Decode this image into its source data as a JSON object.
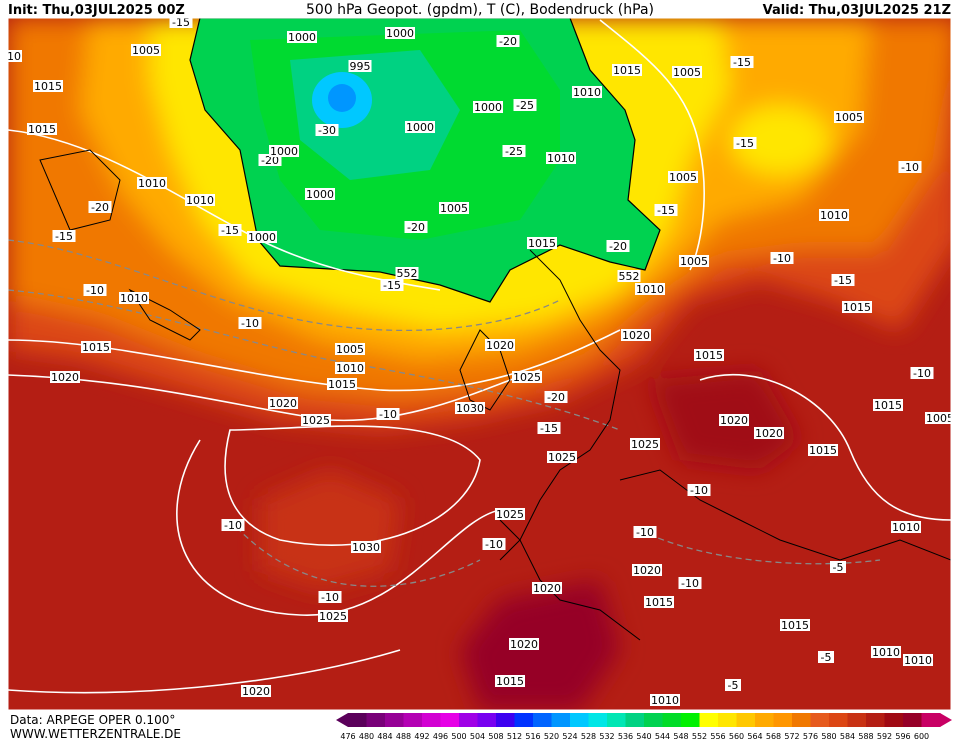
{
  "header": {
    "init": "Init: Thu,03JUL2025 00Z",
    "title": "500 hPa Geopot. (gpdm), T (C), Bodendruck (hPa)",
    "valid": "Valid: Thu,03JUL2025 21Z"
  },
  "footer": {
    "source": "Data: ARPEGE OPER 0.100°",
    "website": "WWW.WETTERZENTRALE.DE"
  },
  "colorbar": {
    "labels": [
      "476",
      "480",
      "484",
      "488",
      "492",
      "496",
      "500",
      "504",
      "508",
      "512",
      "516",
      "520",
      "524",
      "528",
      "532",
      "536",
      "540",
      "544",
      "548",
      "552",
      "556",
      "560",
      "564",
      "568",
      "572",
      "576",
      "580",
      "584",
      "588",
      "592",
      "596",
      "600"
    ],
    "colors": [
      "#5a005a",
      "#780078",
      "#960096",
      "#b400b4",
      "#d200d2",
      "#e600e6",
      "#a000e6",
      "#7800f0",
      "#3c00f0",
      "#0032ff",
      "#0064ff",
      "#0096ff",
      "#00c8ff",
      "#00e6e6",
      "#00e6b4",
      "#00d282",
      "#00d250",
      "#00dc28",
      "#00f000",
      "#ffff00",
      "#ffe600",
      "#ffc800",
      "#ffaa00",
      "#ff9600",
      "#f07800",
      "#e65a1e",
      "#dc4614",
      "#c83214",
      "#b41e14",
      "#a00a14",
      "#960028",
      "#c80064"
    ]
  },
  "map_labels": [
    "1005",
    "1015",
    "1015",
    "1010",
    "1010",
    "-20",
    "-15",
    "-10",
    "1010",
    "1015",
    "1020",
    "-10",
    "1000",
    "-15",
    "1005",
    "1010",
    "1015",
    "1020",
    "1025",
    "-10",
    "1030",
    "1020",
    "1025",
    "-20",
    "-15",
    "1025",
    "-10",
    "1030",
    "-10",
    "1025",
    "1020",
    "1025",
    "-10",
    "1020",
    "1020",
    "1015",
    "1010",
    "1020",
    "-10",
    "-10",
    "1015",
    "1015",
    "-5",
    "-5",
    "1010",
    "1010",
    "-5",
    "1010",
    "1015",
    "1020",
    "1020",
    "-10",
    "1025",
    "1015",
    "1020",
    "1010",
    "1005",
    "-10",
    "-15",
    "1015",
    "-10",
    "1015",
    "1005",
    "1010",
    "1005",
    "-15",
    "-10",
    "-15",
    "1005",
    "1015",
    "1010",
    "-20",
    "-25",
    "-25",
    "1010",
    "1005",
    "-15",
    "1015",
    "-20",
    "1000",
    "1000",
    "995",
    "-30",
    "-20",
    "1000",
    "1000",
    "1000",
    "1005",
    "-20",
    "1000",
    "-15",
    "10",
    "-15",
    "552",
    "552"
  ]
}
